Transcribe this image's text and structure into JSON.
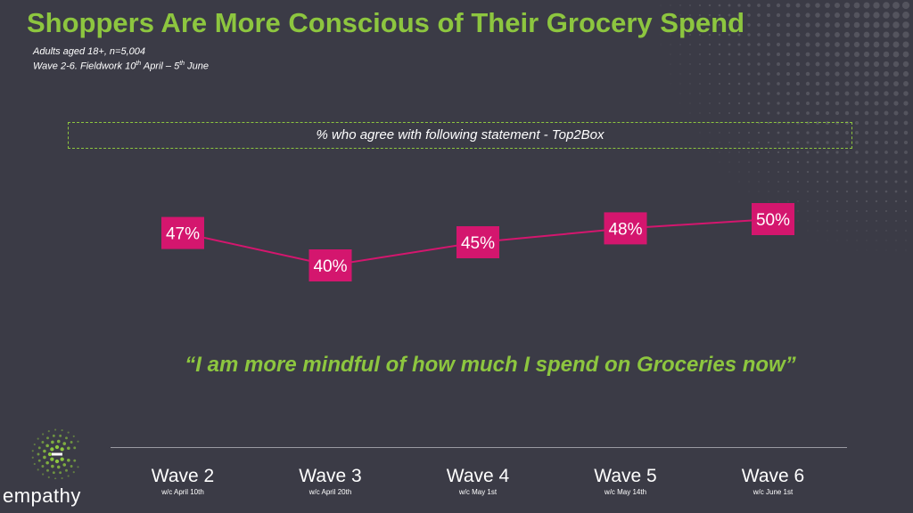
{
  "header": {
    "title": "Shoppers Are More Conscious of Their Grocery Spend",
    "sample": "Adults aged 18+, n=5,004",
    "fieldwork": {
      "prefix": "Wave 2-6. Fieldwork 10",
      "sup1": "th",
      "mid": " April – 5",
      "sup2": "th",
      "suffix": " June"
    }
  },
  "statement_box": "% who agree with following statement - Top2Box",
  "quote": "“I am more mindful of how much I spend on Groceries now”",
  "brand": {
    "name": "empathy",
    "accent": "#8dc63f"
  },
  "colors": {
    "background": "#3b3b46",
    "title": "#8dc63f",
    "series": "#d4166e"
  },
  "chart_data": {
    "type": "line",
    "title": "% who agree with following statement - Top2Box",
    "categories": [
      "Wave 2",
      "Wave 3",
      "Wave 4",
      "Wave 5",
      "Wave 6"
    ],
    "category_dates": [
      "w/c April 10th",
      "w/c April 20th",
      "w/c May 1st",
      "w/c May 14th",
      "w/c June 1st"
    ],
    "series": [
      {
        "name": "I am more mindful of how much I spend on Groceries now",
        "values": [
          47,
          40,
          45,
          48,
          50
        ]
      }
    ],
    "value_labels": [
      "47%",
      "40%",
      "45%",
      "48%",
      "50%"
    ],
    "unit": "%",
    "ylim": [
      40,
      50
    ],
    "grid": false,
    "legend": "none"
  }
}
